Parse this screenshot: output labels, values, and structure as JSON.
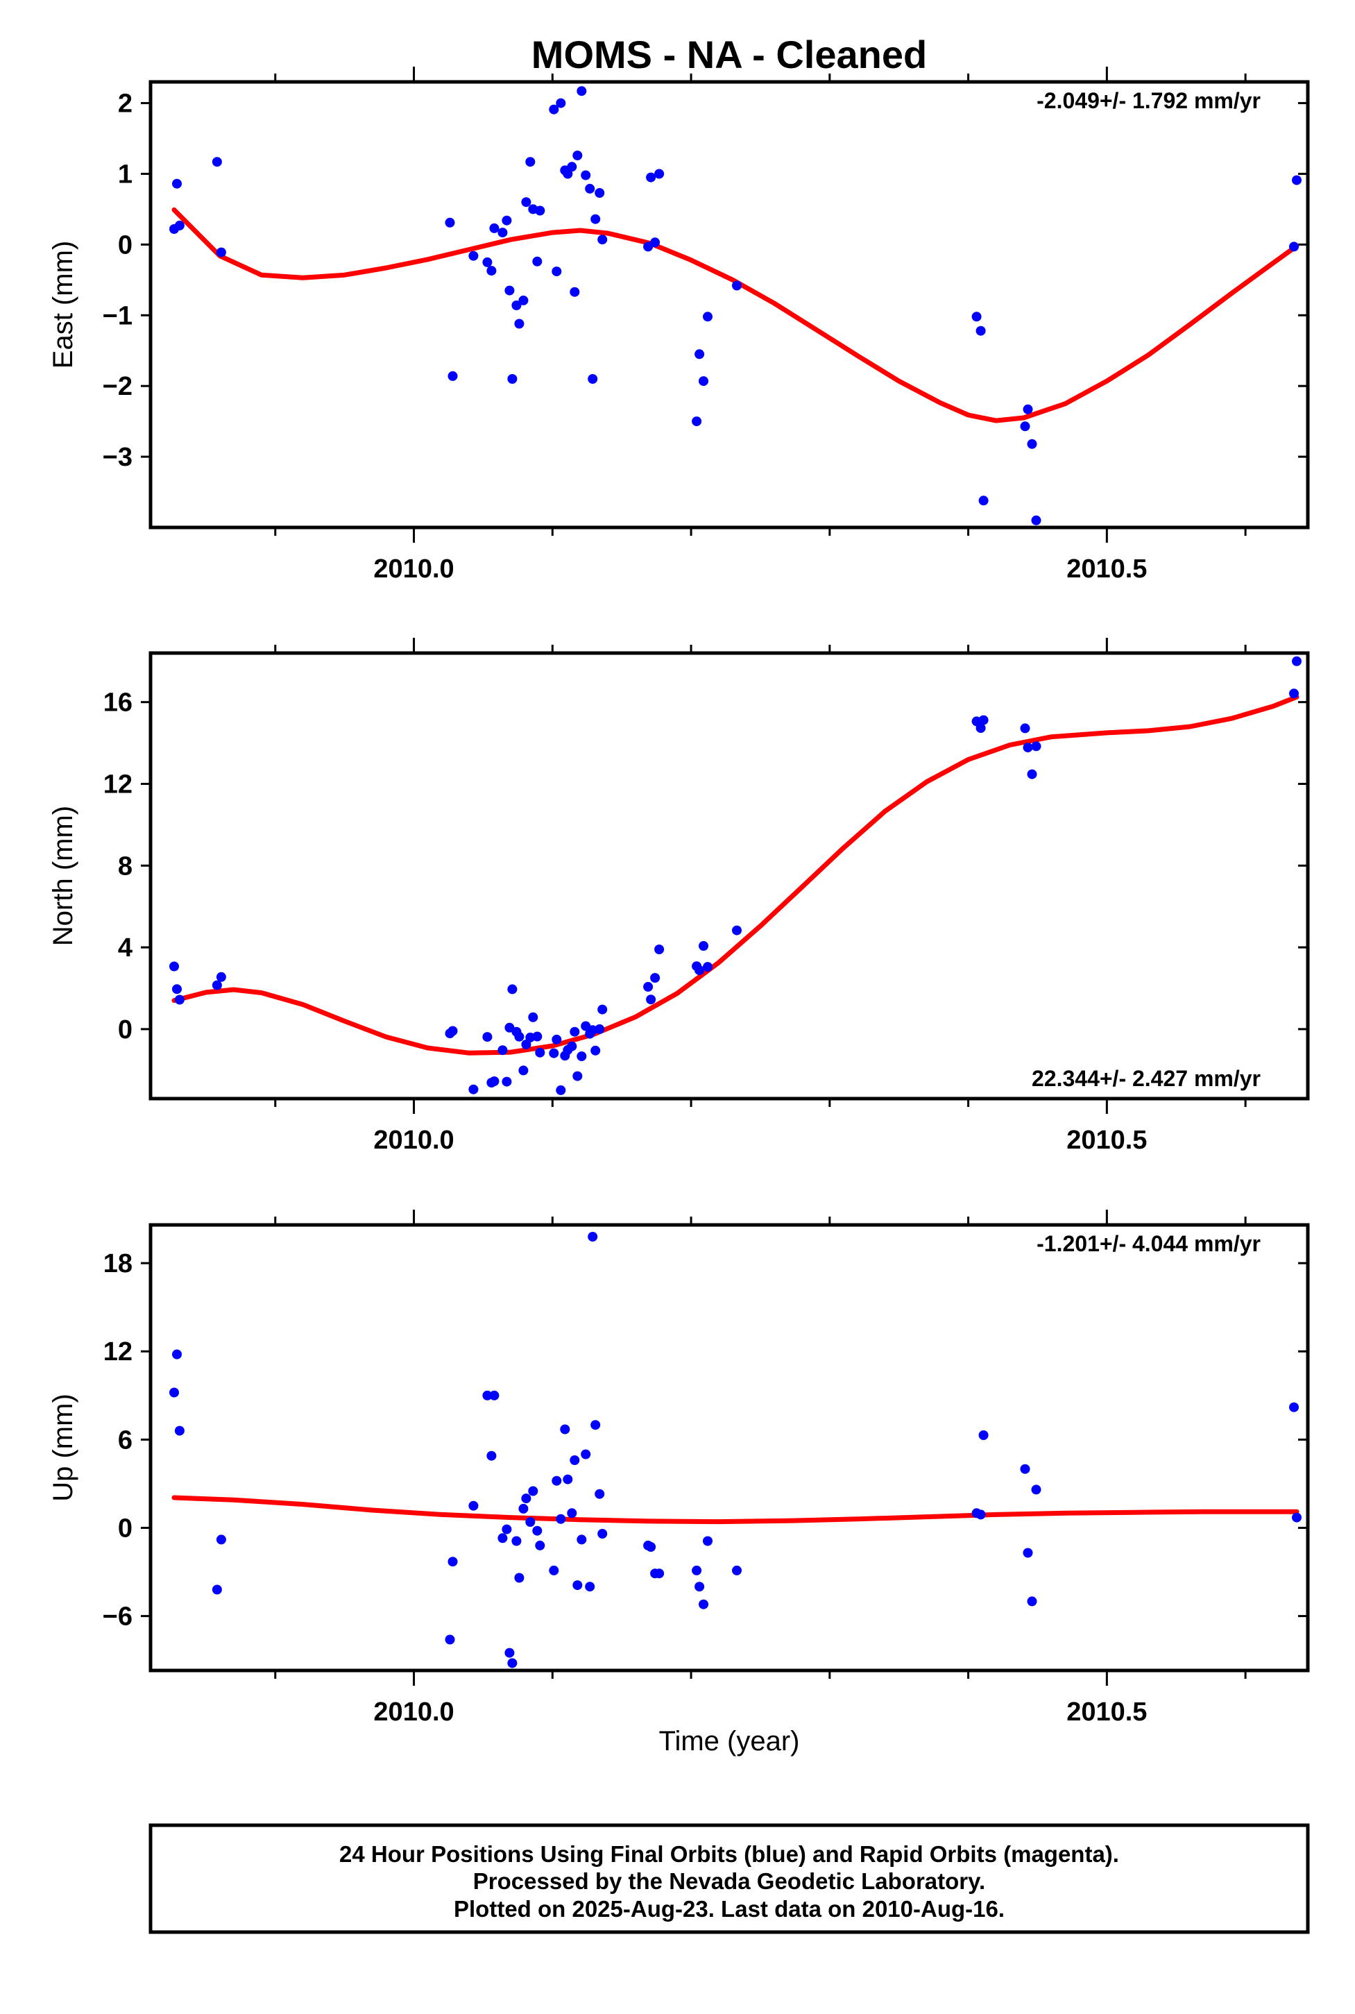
{
  "colors": {
    "final_points": "#0000ff",
    "fit_line": "#ff0000",
    "frame": "#000000"
  },
  "chart_data": {
    "type": "scatter",
    "title": "MOMS  - NA - Cleaned",
    "xlabel": "Time (year)",
    "x_tick_labels": [
      "2010.0",
      "2010.5"
    ],
    "xlim": [
      2009.81,
      2010.645
    ],
    "panels": [
      {
        "ylabel": "East (mm)",
        "rate_text": "-2.049+/- 1.792 mm/yr",
        "rate_position": "top-right",
        "ylim": [
          -4,
          2.3
        ],
        "yticks": [
          2,
          1,
          0,
          -1,
          -2,
          -3
        ],
        "ytick_labels": [
          "2",
          "1",
          "0",
          "−1",
          "−2",
          "−3"
        ],
        "points": [
          [
            2009.827,
            0.22
          ],
          [
            2009.829,
            0.86
          ],
          [
            2009.831,
            0.27
          ],
          [
            2009.858,
            1.17
          ],
          [
            2009.861,
            -0.11
          ],
          [
            2010.026,
            0.31
          ],
          [
            2010.028,
            -1.86
          ],
          [
            2010.043,
            -0.16
          ],
          [
            2010.053,
            -0.25
          ],
          [
            2010.056,
            -0.37
          ],
          [
            2010.058,
            0.23
          ],
          [
            2010.064,
            0.17
          ],
          [
            2010.067,
            0.34
          ],
          [
            2010.069,
            -0.65
          ],
          [
            2010.071,
            -1.9
          ],
          [
            2010.074,
            -0.86
          ],
          [
            2010.076,
            -1.12
          ],
          [
            2010.079,
            -0.79
          ],
          [
            2010.081,
            0.6
          ],
          [
            2010.084,
            1.17
          ],
          [
            2010.086,
            0.5
          ],
          [
            2010.089,
            -0.24
          ],
          [
            2010.091,
            0.48
          ],
          [
            2010.101,
            1.91
          ],
          [
            2010.103,
            -0.38
          ],
          [
            2010.106,
            2.0
          ],
          [
            2010.109,
            1.05
          ],
          [
            2010.111,
            1.0
          ],
          [
            2010.114,
            1.1
          ],
          [
            2010.116,
            -0.67
          ],
          [
            2010.118,
            1.26
          ],
          [
            2010.121,
            2.17
          ],
          [
            2010.124,
            0.98
          ],
          [
            2010.127,
            0.79
          ],
          [
            2010.129,
            -1.9
          ],
          [
            2010.131,
            0.36
          ],
          [
            2010.134,
            0.73
          ],
          [
            2010.136,
            0.07
          ],
          [
            2010.169,
            -0.03
          ],
          [
            2010.171,
            0.95
          ],
          [
            2010.174,
            0.03
          ],
          [
            2010.177,
            1.0
          ],
          [
            2010.204,
            -2.5
          ],
          [
            2010.206,
            -1.55
          ],
          [
            2010.209,
            -1.93
          ],
          [
            2010.212,
            -1.02
          ],
          [
            2010.233,
            -0.58
          ],
          [
            2010.406,
            -1.02
          ],
          [
            2010.409,
            -1.22
          ],
          [
            2010.411,
            -3.62
          ],
          [
            2010.441,
            -2.57
          ],
          [
            2010.443,
            -2.33
          ],
          [
            2010.446,
            -2.82
          ],
          [
            2010.449,
            -3.9
          ],
          [
            2010.635,
            -0.03
          ],
          [
            2010.637,
            0.91
          ]
        ],
        "fit": [
          [
            2009.827,
            0.49
          ],
          [
            2009.86,
            -0.16
          ],
          [
            2009.89,
            -0.43
          ],
          [
            2009.92,
            -0.47
          ],
          [
            2009.95,
            -0.43
          ],
          [
            2009.98,
            -0.33
          ],
          [
            2010.01,
            -0.21
          ],
          [
            2010.04,
            -0.07
          ],
          [
            2010.07,
            0.07
          ],
          [
            2010.1,
            0.17
          ],
          [
            2010.12,
            0.2
          ],
          [
            2010.14,
            0.16
          ],
          [
            2010.17,
            0.02
          ],
          [
            2010.2,
            -0.22
          ],
          [
            2010.23,
            -0.5
          ],
          [
            2010.26,
            -0.83
          ],
          [
            2010.29,
            -1.2
          ],
          [
            2010.32,
            -1.57
          ],
          [
            2010.35,
            -1.93
          ],
          [
            2010.38,
            -2.24
          ],
          [
            2010.4,
            -2.41
          ],
          [
            2010.42,
            -2.49
          ],
          [
            2010.44,
            -2.45
          ],
          [
            2010.47,
            -2.25
          ],
          [
            2010.5,
            -1.93
          ],
          [
            2010.53,
            -1.56
          ],
          [
            2010.56,
            -1.13
          ],
          [
            2010.59,
            -0.69
          ],
          [
            2010.62,
            -0.26
          ],
          [
            2010.637,
            -0.02
          ]
        ]
      },
      {
        "ylabel": "North (mm)",
        "rate_text": "22.344+/- 2.427 mm/yr",
        "rate_position": "bottom-right",
        "ylim": [
          -3.4,
          18.4
        ],
        "yticks": [
          16,
          12,
          8,
          4,
          0
        ],
        "ytick_labels": [
          "16",
          "12",
          "8",
          "4",
          "0"
        ],
        "points": [
          [
            2009.827,
            3.07
          ],
          [
            2009.829,
            1.96
          ],
          [
            2009.831,
            1.44
          ],
          [
            2009.858,
            2.15
          ],
          [
            2009.861,
            2.55
          ],
          [
            2010.026,
            -0.21
          ],
          [
            2010.028,
            -0.09
          ],
          [
            2010.043,
            -2.95
          ],
          [
            2010.053,
            -0.38
          ],
          [
            2010.056,
            -2.62
          ],
          [
            2010.058,
            -2.55
          ],
          [
            2010.064,
            -1.03
          ],
          [
            2010.067,
            -2.57
          ],
          [
            2010.069,
            0.07
          ],
          [
            2010.071,
            1.95
          ],
          [
            2010.074,
            -0.13
          ],
          [
            2010.076,
            -0.37
          ],
          [
            2010.079,
            -2.02
          ],
          [
            2010.081,
            -0.75
          ],
          [
            2010.084,
            -0.41
          ],
          [
            2010.086,
            0.58
          ],
          [
            2010.089,
            -0.36
          ],
          [
            2010.091,
            -1.15
          ],
          [
            2010.101,
            -1.18
          ],
          [
            2010.103,
            -0.51
          ],
          [
            2010.106,
            -2.99
          ],
          [
            2010.109,
            -1.3
          ],
          [
            2010.111,
            -1.02
          ],
          [
            2010.114,
            -0.84
          ],
          [
            2010.116,
            -0.13
          ],
          [
            2010.118,
            -2.3
          ],
          [
            2010.121,
            -1.33
          ],
          [
            2010.124,
            0.15
          ],
          [
            2010.127,
            -0.23
          ],
          [
            2010.129,
            -0.05
          ],
          [
            2010.131,
            -1.05
          ],
          [
            2010.134,
            0.0
          ],
          [
            2010.136,
            0.96
          ],
          [
            2010.169,
            2.07
          ],
          [
            2010.171,
            1.45
          ],
          [
            2010.174,
            2.51
          ],
          [
            2010.177,
            3.9
          ],
          [
            2010.204,
            3.08
          ],
          [
            2010.206,
            2.88
          ],
          [
            2010.209,
            4.07
          ],
          [
            2010.212,
            3.05
          ],
          [
            2010.233,
            4.83
          ],
          [
            2010.406,
            15.06
          ],
          [
            2010.409,
            14.73
          ],
          [
            2010.411,
            15.12
          ],
          [
            2010.441,
            14.72
          ],
          [
            2010.443,
            13.78
          ],
          [
            2010.446,
            12.47
          ],
          [
            2010.449,
            13.84
          ],
          [
            2010.635,
            16.42
          ],
          [
            2010.637,
            18.0
          ]
        ],
        "fit": [
          [
            2009.827,
            1.4
          ],
          [
            2009.85,
            1.8
          ],
          [
            2009.87,
            1.93
          ],
          [
            2009.89,
            1.78
          ],
          [
            2009.92,
            1.2
          ],
          [
            2009.95,
            0.39
          ],
          [
            2009.98,
            -0.38
          ],
          [
            2010.01,
            -0.92
          ],
          [
            2010.04,
            -1.17
          ],
          [
            2010.07,
            -1.13
          ],
          [
            2010.1,
            -0.82
          ],
          [
            2010.13,
            -0.25
          ],
          [
            2010.16,
            0.6
          ],
          [
            2010.19,
            1.75
          ],
          [
            2010.22,
            3.26
          ],
          [
            2010.25,
            5.04
          ],
          [
            2010.28,
            6.95
          ],
          [
            2010.31,
            8.87
          ],
          [
            2010.34,
            10.66
          ],
          [
            2010.37,
            12.1
          ],
          [
            2010.4,
            13.19
          ],
          [
            2010.43,
            13.9
          ],
          [
            2010.46,
            14.3
          ],
          [
            2010.5,
            14.5
          ],
          [
            2010.53,
            14.6
          ],
          [
            2010.56,
            14.8
          ],
          [
            2010.59,
            15.2
          ],
          [
            2010.62,
            15.8
          ],
          [
            2010.637,
            16.25
          ]
        ]
      },
      {
        "ylabel": "Up (mm)",
        "rate_text": "-1.201+/- 4.044 mm/yr",
        "rate_position": "top-right",
        "ylim": [
          -9.7,
          20.6
        ],
        "yticks": [
          18,
          12,
          6,
          0,
          -6
        ],
        "ytick_labels": [
          "18",
          "12",
          "6",
          "0",
          "−6"
        ],
        "points": [
          [
            2009.827,
            9.2
          ],
          [
            2009.829,
            11.8
          ],
          [
            2009.831,
            6.6
          ],
          [
            2009.858,
            -4.2
          ],
          [
            2009.861,
            -0.8
          ],
          [
            2010.026,
            -7.6
          ],
          [
            2010.028,
            -2.3
          ],
          [
            2010.043,
            1.5
          ],
          [
            2010.053,
            9.0
          ],
          [
            2010.056,
            4.9
          ],
          [
            2010.058,
            9.0
          ],
          [
            2010.064,
            -0.7
          ],
          [
            2010.067,
            -0.1
          ],
          [
            2010.069,
            -8.5
          ],
          [
            2010.071,
            -9.2
          ],
          [
            2010.074,
            -0.9
          ],
          [
            2010.076,
            -3.4
          ],
          [
            2010.079,
            1.3
          ],
          [
            2010.081,
            2.0
          ],
          [
            2010.084,
            0.4
          ],
          [
            2010.086,
            2.5
          ],
          [
            2010.089,
            -0.2
          ],
          [
            2010.091,
            -1.2
          ],
          [
            2010.101,
            -2.9
          ],
          [
            2010.103,
            3.2
          ],
          [
            2010.106,
            0.6
          ],
          [
            2010.109,
            6.7
          ],
          [
            2010.111,
            3.3
          ],
          [
            2010.114,
            1.0
          ],
          [
            2010.116,
            4.6
          ],
          [
            2010.118,
            -3.9
          ],
          [
            2010.121,
            -0.8
          ],
          [
            2010.124,
            5.0
          ],
          [
            2010.127,
            -4.0
          ],
          [
            2010.129,
            19.8
          ],
          [
            2010.131,
            7.0
          ],
          [
            2010.134,
            2.3
          ],
          [
            2010.136,
            -0.4
          ],
          [
            2010.169,
            -1.2
          ],
          [
            2010.171,
            -1.3
          ],
          [
            2010.174,
            -3.1
          ],
          [
            2010.177,
            -3.1
          ],
          [
            2010.204,
            -2.9
          ],
          [
            2010.206,
            -4.0
          ],
          [
            2010.209,
            -5.2
          ],
          [
            2010.212,
            -0.9
          ],
          [
            2010.233,
            -2.9
          ],
          [
            2010.406,
            1.0
          ],
          [
            2010.409,
            0.9
          ],
          [
            2010.411,
            6.3
          ],
          [
            2010.441,
            4.0
          ],
          [
            2010.443,
            -1.7
          ],
          [
            2010.446,
            -5.0
          ],
          [
            2010.449,
            2.6
          ],
          [
            2010.635,
            8.2
          ],
          [
            2010.637,
            0.7
          ]
        ],
        "fit": [
          [
            2009.827,
            2.05
          ],
          [
            2009.87,
            1.9
          ],
          [
            2009.92,
            1.6
          ],
          [
            2009.97,
            1.2
          ],
          [
            2010.02,
            0.9
          ],
          [
            2010.07,
            0.7
          ],
          [
            2010.12,
            0.55
          ],
          [
            2010.17,
            0.45
          ],
          [
            2010.22,
            0.42
          ],
          [
            2010.27,
            0.48
          ],
          [
            2010.32,
            0.6
          ],
          [
            2010.37,
            0.75
          ],
          [
            2010.42,
            0.9
          ],
          [
            2010.47,
            1.0
          ],
          [
            2010.52,
            1.05
          ],
          [
            2010.57,
            1.1
          ],
          [
            2010.637,
            1.1
          ]
        ]
      }
    ]
  },
  "footer": {
    "line1": "24 Hour Positions Using Final Orbits (blue) and Rapid Orbits (magenta).",
    "line2": "Processed by the Nevada Geodetic Laboratory.",
    "line3": "Plotted on 2025-Aug-23. Last data on 2010-Aug-16."
  }
}
